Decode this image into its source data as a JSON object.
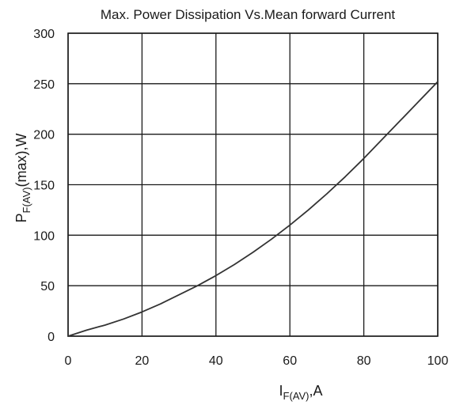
{
  "chart_data": {
    "type": "line",
    "title": "Max. Power Dissipation Vs.Mean forward Current",
    "xlabel": {
      "main": "I",
      "sub": "F(AV)",
      "suffix": ",A"
    },
    "ylabel": {
      "main": "P",
      "sub": "F(AV)",
      "suffix": "(max),W"
    },
    "xlim": [
      0,
      100
    ],
    "ylim": [
      0,
      300
    ],
    "xticks": [
      0,
      20,
      40,
      60,
      80,
      100
    ],
    "yticks": [
      0,
      50,
      100,
      150,
      200,
      250,
      300
    ],
    "grid": true,
    "series": [
      {
        "x": [
          0,
          5,
          10,
          15,
          20,
          25,
          30,
          35,
          40,
          45,
          50,
          55,
          60,
          65,
          70,
          75,
          80,
          85,
          90,
          95,
          100
        ],
        "y": [
          0,
          6,
          11,
          17,
          24,
          32,
          41,
          50,
          60,
          71,
          83,
          96,
          110,
          125,
          141,
          158,
          176,
          195,
          214,
          233,
          252
        ]
      }
    ],
    "colors": {
      "line": "#333333",
      "grid": "#1a1a1a",
      "text": "#1a1a1a"
    }
  }
}
